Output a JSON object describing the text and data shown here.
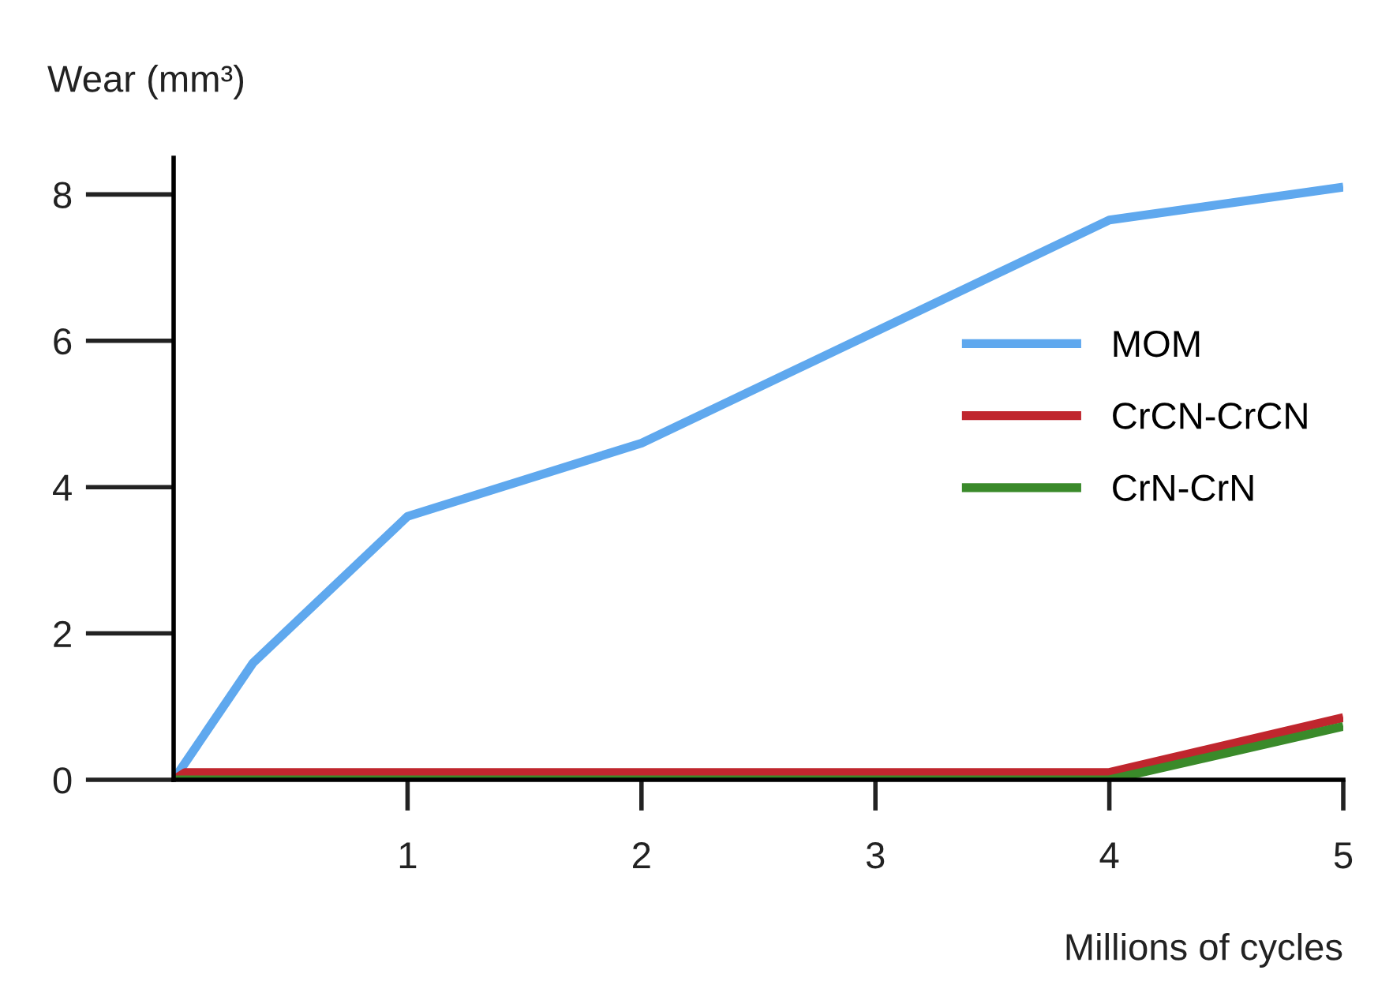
{
  "chart_data": {
    "type": "line",
    "ylabel": "Wear (mm³)",
    "xlabel": "Millions of cycles",
    "series": [
      {
        "name": "MOM",
        "color": "#5fa8ee",
        "x": [
          0,
          0.34,
          1,
          2,
          4,
          5
        ],
        "values": [
          0,
          1.6,
          3.6,
          4.6,
          7.65,
          8.1
        ]
      },
      {
        "name": "CrCN-CrCN",
        "color": "#c0262e",
        "x": [
          0,
          0.05,
          4,
          5
        ],
        "values": [
          0,
          0.1,
          0.1,
          0.85
        ]
      },
      {
        "name": "CrN-CrN",
        "color": "#3a8a2a",
        "x": [
          0,
          4,
          5
        ],
        "values": [
          0,
          0,
          0.73
        ]
      }
    ],
    "xlim": [
      0,
      5
    ],
    "ylim": [
      0,
      8.5
    ],
    "xticks": [
      1,
      2,
      3,
      4,
      5
    ],
    "yticks": [
      0,
      2,
      4,
      6,
      8
    ],
    "legend": "right",
    "grid": false,
    "marker": "none",
    "line_style": "solid"
  }
}
